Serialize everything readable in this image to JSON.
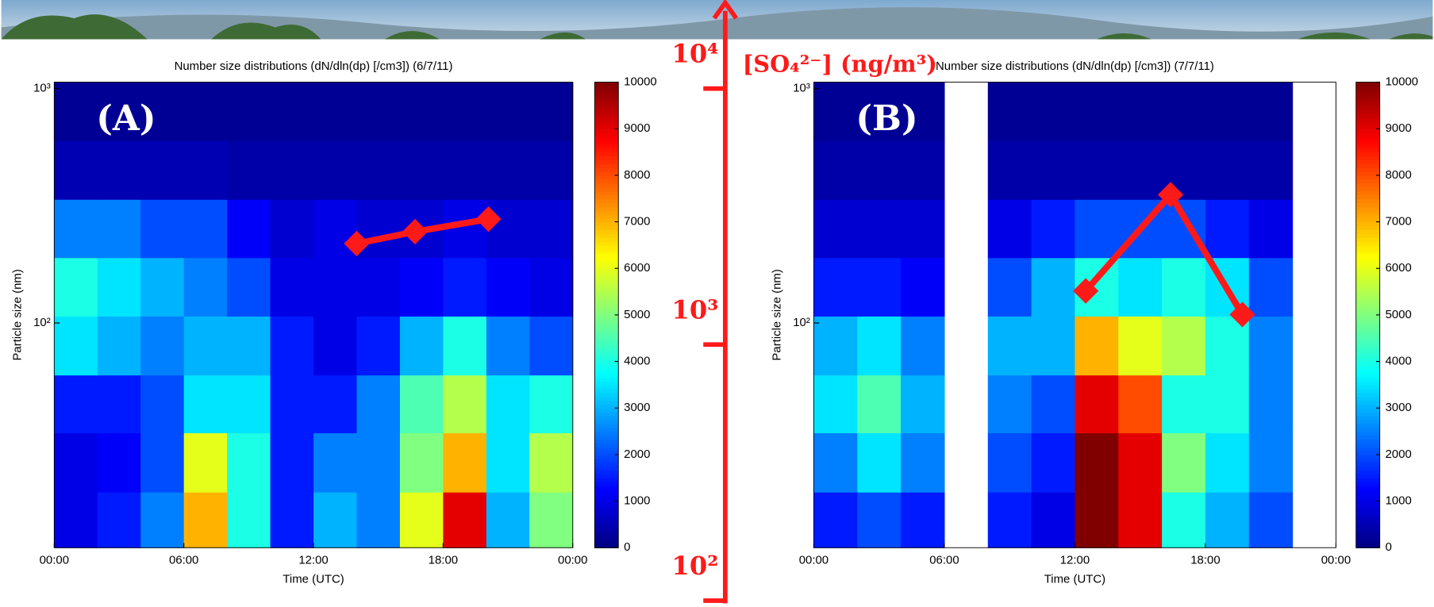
{
  "chart_data": [
    {
      "type": "heatmap",
      "title": "Number size distributions (dN/dln(dp) [/cm3]) (6/7/11)",
      "annotation": "(A)",
      "xlabel": "Time (UTC)",
      "ylabel": "Particle size (nm)",
      "x_bins": [
        0,
        2,
        4,
        6,
        8,
        10,
        12,
        14,
        16,
        18,
        20,
        22,
        24
      ],
      "y_bins": [
        11,
        19,
        34,
        60,
        107,
        190,
        337,
        600,
        1065
      ],
      "z": [
        [
          1000,
          1500,
          2500,
          7000,
          4000,
          1500,
          3000,
          2500,
          6000,
          9000,
          3000,
          5000
        ],
        [
          1000,
          1200,
          2000,
          6000,
          4000,
          1500,
          2500,
          2500,
          5000,
          7000,
          3500,
          5500
        ],
        [
          1500,
          1500,
          2000,
          3500,
          3500,
          1500,
          1500,
          2500,
          4500,
          5500,
          3500,
          4000
        ],
        [
          3500,
          3000,
          2500,
          3000,
          3000,
          1500,
          1000,
          1500,
          3000,
          4000,
          2500,
          2000
        ],
        [
          4000,
          3500,
          3000,
          2500,
          2000,
          1000,
          1000,
          1000,
          1200,
          1500,
          1200,
          1000
        ],
        [
          2500,
          2500,
          2000,
          2000,
          1200,
          800,
          1000,
          800,
          800,
          1000,
          800,
          800
        ],
        [
          500,
          500,
          500,
          500,
          400,
          400,
          400,
          400,
          400,
          400,
          400,
          400
        ],
        [
          200,
          200,
          200,
          200,
          200,
          200,
          200,
          200,
          200,
          200,
          200,
          200
        ]
      ],
      "xlim": [
        0,
        24
      ],
      "xticks": [
        {
          "value": 0,
          "label": "00:00"
        },
        {
          "value": 6,
          "label": "06:00"
        },
        {
          "value": 12,
          "label": "12:00"
        },
        {
          "value": 18,
          "label": "18:00"
        },
        {
          "value": 24,
          "label": "00:00"
        }
      ],
      "ylim": [
        11,
        1065
      ],
      "yticks": [
        {
          "value": 100,
          "label": "10²"
        },
        {
          "value": 1000,
          "label": "10³"
        }
      ],
      "log_y": true,
      "colormap": "jet",
      "zlim": [
        0,
        10000
      ],
      "zticks": [
        0,
        1000,
        2000,
        3000,
        4000,
        5000,
        6000,
        7000,
        8000,
        9000,
        10000
      ],
      "overlay": {
        "color": "#ff1a1a",
        "x": [
          14,
          16.7,
          20.1
        ],
        "values": [
          2480,
          2760,
          3090
        ]
      }
    },
    {
      "type": "heatmap",
      "title": "Number size distributions (dN/dln(dp) [/cm3]) (7/7/11)",
      "annotation": "(B)",
      "xlabel": "Time (UTC)",
      "ylabel": "Particle size (nm)",
      "x_bins": [
        0,
        2,
        4,
        6,
        8,
        10,
        12,
        14,
        16,
        18,
        20,
        22,
        24
      ],
      "y_bins": [
        11,
        19,
        34,
        60,
        107,
        190,
        337,
        600,
        1065
      ],
      "z": [
        [
          1500,
          2000,
          1500,
          null,
          1500,
          1000,
          10000,
          9000,
          4000,
          3000,
          2000,
          null
        ],
        [
          2500,
          3500,
          2500,
          null,
          2000,
          1500,
          10000,
          9000,
          5000,
          3500,
          2500,
          null
        ],
        [
          3500,
          4500,
          3000,
          null,
          2500,
          2000,
          9000,
          8000,
          4000,
          4000,
          2500,
          null
        ],
        [
          3000,
          3500,
          2500,
          null,
          3000,
          3000,
          7000,
          6000,
          5500,
          4000,
          2500,
          null
        ],
        [
          1500,
          1500,
          1200,
          null,
          2000,
          3000,
          4000,
          3500,
          4000,
          3500,
          2000,
          null
        ],
        [
          800,
          800,
          800,
          null,
          1000,
          1500,
          2000,
          2000,
          2000,
          1500,
          1000,
          null
        ],
        [
          400,
          400,
          400,
          null,
          400,
          400,
          400,
          400,
          400,
          400,
          400,
          null
        ],
        [
          200,
          200,
          200,
          null,
          200,
          200,
          200,
          200,
          200,
          200,
          200,
          null
        ]
      ],
      "xlim": [
        0,
        24
      ],
      "xticks": [
        {
          "value": 0,
          "label": "00:00"
        },
        {
          "value": 6,
          "label": "06:00"
        },
        {
          "value": 12,
          "label": "12:00"
        },
        {
          "value": 18,
          "label": "18:00"
        },
        {
          "value": 24,
          "label": "00:00"
        }
      ],
      "ylim": [
        11,
        1065
      ],
      "yticks": [
        {
          "value": 100,
          "label": "10²"
        },
        {
          "value": 1000,
          "label": "10³"
        }
      ],
      "log_y": true,
      "colormap": "jet",
      "zlim": [
        0,
        10000
      ],
      "zticks": [
        0,
        1000,
        2000,
        3000,
        4000,
        5000,
        6000,
        7000,
        8000,
        9000,
        10000
      ],
      "overlay": {
        "color": "#ff1a1a",
        "x": [
          12.5,
          16.4,
          19.7
        ],
        "values": [
          1620,
          3850,
          1310
        ]
      }
    },
    {
      "type": "axis",
      "title": "[SO₄²⁻] (ng/m³)",
      "ylim": [
        100,
        10000
      ],
      "yticks": [
        {
          "value": 100,
          "label": "10²"
        },
        {
          "value": 1000,
          "label": "10³"
        },
        {
          "value": 10000,
          "label": "10⁴"
        }
      ],
      "log_y": true,
      "color": "#ff1a1a"
    }
  ]
}
